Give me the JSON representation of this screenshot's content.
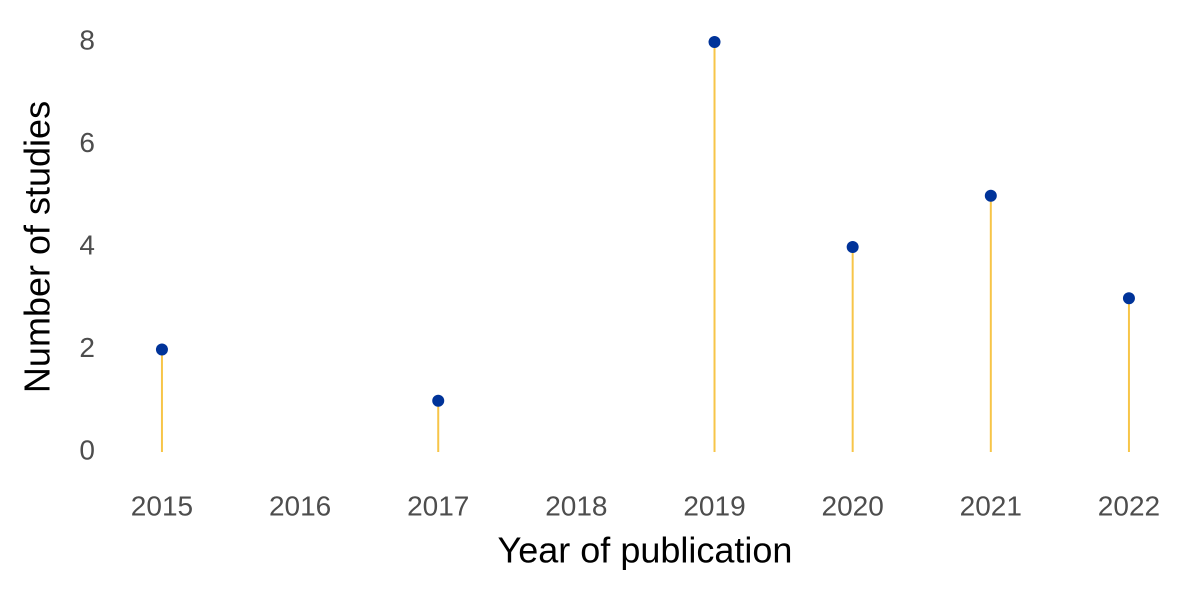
{
  "chart_data": {
    "type": "lollipop",
    "x_label": "Year of publication",
    "y_label": "Number of studies",
    "x": [
      2015,
      2017,
      2019,
      2020,
      2021,
      2022
    ],
    "values": [
      2,
      1,
      8,
      4,
      5,
      3
    ],
    "stem_color": "#f7c548",
    "color": "#003399",
    "xlim": [
      2014.65,
      2022.35
    ],
    "xticks": [
      2015,
      2016,
      2017,
      2018,
      2019,
      2020,
      2021,
      2022
    ],
    "ylim": [
      -0.4,
      8.4
    ],
    "yticks": [
      0,
      2,
      4,
      6,
      8
    ],
    "grid": false
  }
}
